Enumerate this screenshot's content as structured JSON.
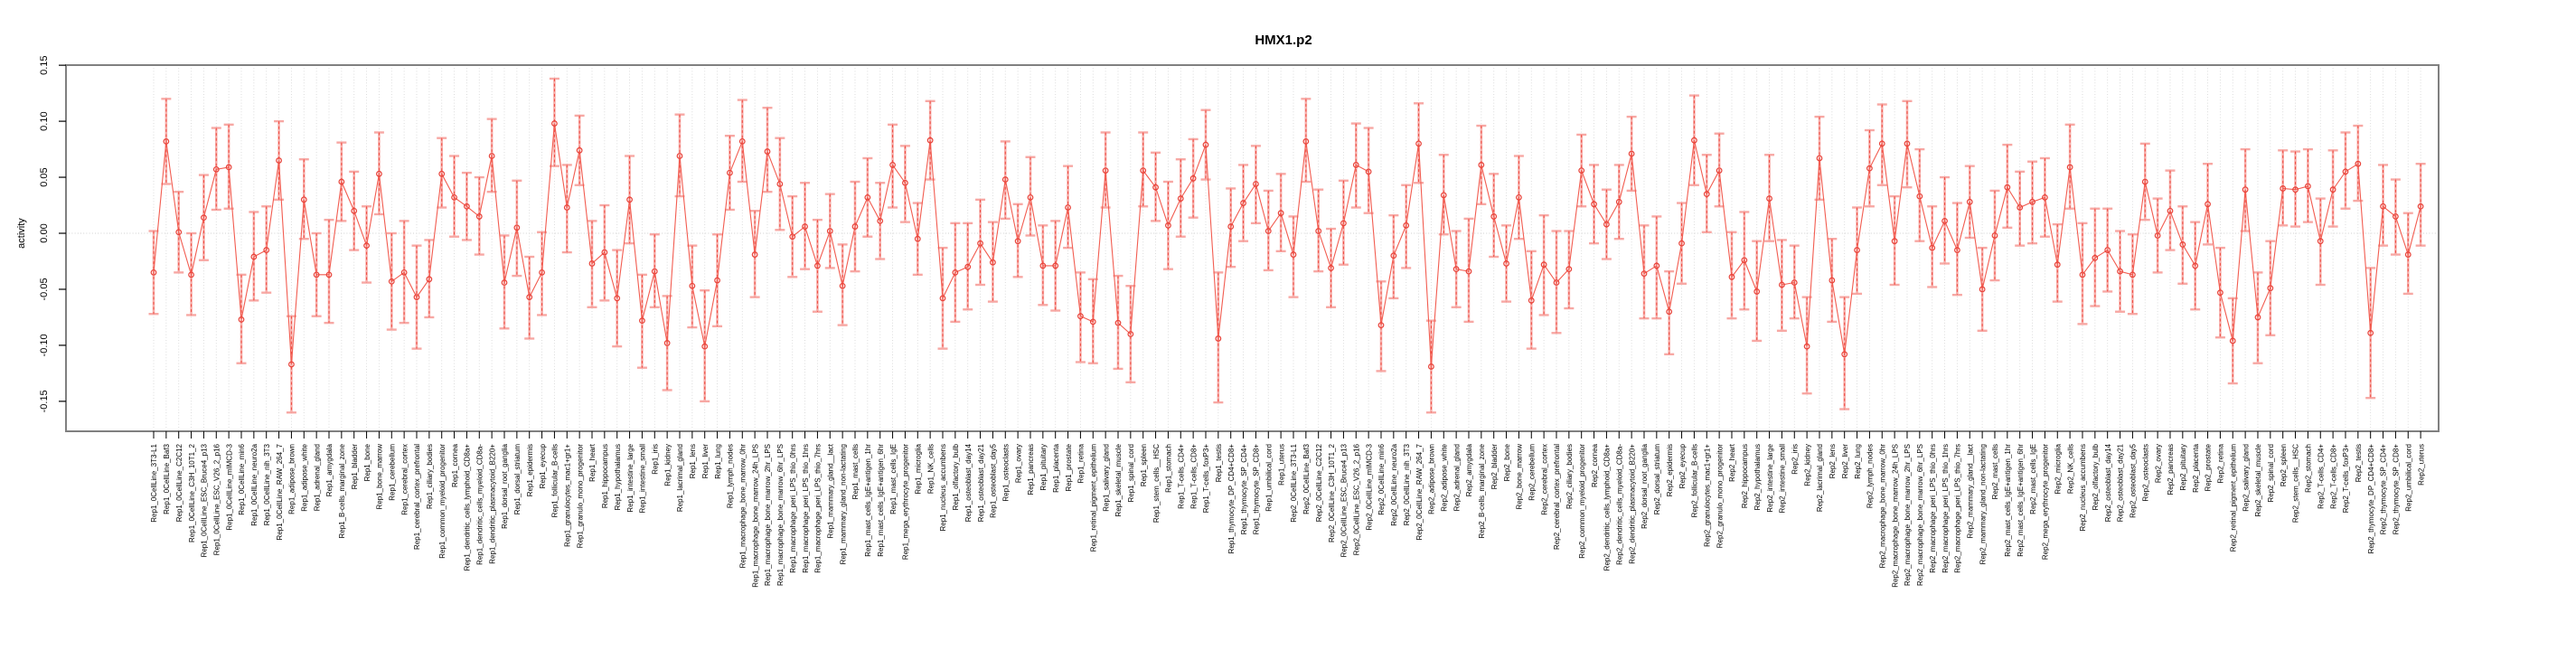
{
  "chart_data": {
    "type": "line",
    "title": "HMX1.p2",
    "ylabel": "activity",
    "xlabel": "",
    "ylim": [
      -0.177,
      0.153
    ],
    "yticks": [
      "0.15",
      "0.10",
      "0.05",
      "0.00",
      "-0.05",
      "-0.10",
      "-0.15"
    ],
    "ytick_values": [
      0.15,
      0.1,
      0.05,
      0.0,
      -0.05,
      -0.1,
      -0.15
    ],
    "grid": "light dotted vertical line at every category; dotted horizontal line at y=0",
    "legend": "none",
    "marker": "open-circle",
    "error_bars": "pink solid bar with caps plus dashed red shaft per point",
    "colors": {
      "point": "#e8433a",
      "line": "#f25c50",
      "errorbar": "#f7a8a4",
      "errorbar_dash": "#ef4b41",
      "grid": "#d8d8d8",
      "zero_line": "#d0d0d0",
      "box": "#808080",
      "tick": "#000000"
    },
    "categories": [
      "Rep1_0CellLine_3T3-L1",
      "Rep1_0CellLine_Baf3",
      "Rep1_0CellLine_C2C12",
      "Rep1_0CellLine_C3H_10T1_2",
      "Rep1_0CellLine_ESC_Bruce4_p13",
      "Rep1_0CellLine_ESC_V26_2_p16",
      "Rep1_0CellLine_mIMCD-3",
      "Rep1_0CellLine_min6",
      "Rep1_0CellLine_neuro2a",
      "Rep1_0CellLine_nih_3T3",
      "Rep1_0CellLine_RAW_264_7",
      "Rep1_adipose_brown",
      "Rep1_adipose_white",
      "Rep1_adrenal_gland",
      "Rep1_amygdala",
      "Rep1_B-cells_marginal_zone",
      "Rep1_bladder",
      "Rep1_bone",
      "Rep1_bone_marrow",
      "Rep1_cerebellum",
      "Rep1_cerebral_cortex",
      "Rep1_cerebral_cortex_prefrontal",
      "Rep1_ciliary_bodies",
      "Rep1_common_myeloid_progenitor",
      "Rep1_cornea",
      "Rep1_dendritic_cells_lymphoid_CD8a+",
      "Rep1_dendritic_cells_myeloid_CD8a-",
      "Rep1_dendritic_plasmacytoid_B220+",
      "Rep1_dorsal_root_ganglia",
      "Rep1_dorsal_striatum",
      "Rep1_epidermis",
      "Rep1_eyecup",
      "Rep1_follicular_B-cells",
      "Rep1_granulocytes_mac1+gr1+",
      "Rep1_granulo_mono_progenitor",
      "Rep1_heart",
      "Rep1_hippocampus",
      "Rep1_hypothalamus",
      "Rep1_intestine_large",
      "Rep1_intestine_small",
      "Rep1_iris",
      "Rep1_kidney",
      "Rep1_lacrimal_gland",
      "Rep1_lens",
      "Rep1_liver",
      "Rep1_lung",
      "Rep1_lymph_nodes",
      "Rep1_macrophage_bone_marrow_0hr",
      "Rep1_macrophage_bone_marrow_24h_LPS",
      "Rep1_macrophage_bone_marrow_2hr_LPS",
      "Rep1_macrophage_bone_marrow_6hr_LPS",
      "Rep1_macrophage_peri_LPS_thio_0hrs",
      "Rep1_macrophage_peri_LPS_thio_1hrs",
      "Rep1_macrophage_peri_LPS_thio_7hrs",
      "Rep1_mammary_gland__lact",
      "Rep1_mammary_gland_non-lactating",
      "Rep1_mast_cells",
      "Rep1_mast_cells_IgE+antigen_1hr",
      "Rep1_mast_cells_IgE+antigen_6hr",
      "Rep1_mast_cells_IgE",
      "Rep1_mega_erythrocyte_progenitor",
      "Rep1_microglia",
      "Rep1_NK_cells",
      "Rep1_nucleus_accumbens",
      "Rep1_olfactory_bulb",
      "Rep1_osteoblast_day14",
      "Rep1_osteoblast_day21",
      "Rep1_osteoblast_day5",
      "Rep1_osteoclasts",
      "Rep1_ovary",
      "Rep1_pancreas",
      "Rep1_pituitary",
      "Rep1_placenta",
      "Rep1_prostate",
      "Rep1_retina",
      "Rep1_retinal_pigment_epithelium",
      "Rep1_salivary_gland",
      "Rep1_skeletal_muscle",
      "Rep1_spinal_cord",
      "Rep1_spleen",
      "Rep1_stem_cells__HSC",
      "Rep1_stomach",
      "Rep1_T-cells_CD4+",
      "Rep1_T-cells_CD8+",
      "Rep1_T-cells_foxP3+",
      "Rep1_testis",
      "Rep1_thymocyte_DP_CD4+CD8+",
      "Rep1_thymocyte_SP_CD4+",
      "Rep1_thymocyte_SP_CD8+",
      "Rep1_umbilical_cord",
      "Rep1_uterus",
      "Rep2_0CellLine_3T3-L1",
      "Rep2_0CellLine_Baf3",
      "Rep2_0CellLine_C2C12",
      "Rep2_0CellLine_C3H_10T1_2",
      "Rep2_0CellLine_ESC_Bruce4_p13",
      "Rep2_0CellLine_ESC_V26_2_p16",
      "Rep2_0CellLine_mIMCD-3",
      "Rep2_0CellLine_min6",
      "Rep2_0CellLine_neuro2a",
      "Rep2_0CellLine_nih_3T3",
      "Rep2_0CellLine_RAW_264_7",
      "Rep2_adipose_brown",
      "Rep2_adipose_white",
      "Rep2_adrenal_gland",
      "Rep2_amygdala",
      "Rep2_B-cells_marginal_zone",
      "Rep2_bladder",
      "Rep2_bone",
      "Rep2_bone_marrow",
      "Rep2_cerebellum",
      "Rep2_cerebral_cortex",
      "Rep2_cerebral_cortex_prefrontal",
      "Rep2_ciliary_bodies",
      "Rep2_common_myeloid_progenitor",
      "Rep2_cornea",
      "Rep2_dendritic_cells_lymphoid_CD8a+",
      "Rep2_dendritic_cells_myeloid_CD8a-",
      "Rep2_dendritic_plasmacytoid_B220+",
      "Rep2_dorsal_root_ganglia",
      "Rep2_dorsal_striatum",
      "Rep2_epidermis",
      "Rep2_eyecup",
      "Rep2_follicular_B-cells",
      "Rep2_granulocytes_mac1+gr1+",
      "Rep2_granulo_mono_progenitor",
      "Rep2_heart",
      "Rep2_hippocampus",
      "Rep2_hypothalamus",
      "Rep2_intestine_large",
      "Rep2_intestine_small",
      "Rep2_iris",
      "Rep2_kidney",
      "Rep2_lacrimal_gland",
      "Rep2_lens",
      "Rep2_liver",
      "Rep2_lung",
      "Rep2_lymph_nodes",
      "Rep2_macrophage_bone_marrow_0hr",
      "Rep2_macrophage_bone_marrow_24h_LPS",
      "Rep2_macrophage_bone_marrow_2hr_LPS",
      "Rep2_macrophage_bone_marrow_6hr_LPS",
      "Rep2_macrophage_peri_LPS_thio_0hrs",
      "Rep2_macrophage_peri_LPS_thio_1hrs",
      "Rep2_macrophage_peri_LPS_thio_7hrs",
      "Rep2_mammary_gland__lact",
      "Rep2_mammary_gland_non-lactating",
      "Rep2_mast_cells",
      "Rep2_mast_cells_IgE+antigen_1hr",
      "Rep2_mast_cells_IgE+antigen_6hr",
      "Rep2_mast_cells_IgE",
      "Rep2_mega_erythrocyte_progenitor",
      "Rep2_microglia",
      "Rep2_NK_cells",
      "Rep2_nucleus_accumbens",
      "Rep2_olfactory_bulb",
      "Rep2_osteoblast_day14",
      "Rep2_osteoblast_day21",
      "Rep2_osteoblast_day5",
      "Rep2_osteoclasts",
      "Rep2_ovary",
      "Rep2_pancreas",
      "Rep2_pituitary",
      "Rep2_placenta",
      "Rep2_prostate",
      "Rep2_retina",
      "Rep2_retinal_pigment_epithelium",
      "Rep2_salivary_gland",
      "Rep2_skeletal_muscle",
      "Rep2_spinal_cord",
      "Rep2_spleen",
      "Rep2_stem_cells__HSC",
      "Rep2_stomach",
      "Rep2_T-cells_CD4+",
      "Rep2_T-cells_CD8+",
      "Rep2_T-cells_foxP3+",
      "Rep2_testis",
      "Rep2_thymocyte_DP_CD4+CD8+",
      "Rep2_thymocyte_SP_CD4+",
      "Rep2_thymocyte_SP_CD8+",
      "Rep2_umbilical_cord",
      "Rep2_uterus"
    ],
    "values": [
      -0.035,
      0.082,
      0.001,
      -0.037,
      0.014,
      0.057,
      0.059,
      -0.077,
      -0.021,
      -0.015,
      0.065,
      -0.117,
      0.03,
      -0.037,
      -0.037,
      0.046,
      0.02,
      -0.011,
      0.053,
      -0.043,
      -0.035,
      -0.057,
      -0.041,
      0.053,
      0.032,
      0.024,
      0.015,
      0.069,
      -0.044,
      0.005,
      -0.057,
      -0.035,
      0.098,
      0.023,
      0.074,
      -0.027,
      -0.017,
      -0.058,
      0.03,
      -0.078,
      -0.034,
      -0.098,
      0.069,
      -0.047,
      -0.101,
      -0.042,
      0.054,
      0.082,
      -0.019,
      0.073,
      0.044,
      -0.003,
      0.006,
      -0.029,
      0.002,
      -0.047,
      0.006,
      0.032,
      0.011,
      0.061,
      0.045,
      -0.005,
      0.083,
      -0.058,
      -0.035,
      -0.03,
      -0.009,
      -0.026,
      0.048,
      -0.007,
      0.032,
      -0.029,
      -0.029,
      0.023,
      -0.074,
      -0.079,
      0.056,
      -0.08,
      -0.09,
      0.056,
      0.041,
      0.007,
      0.031,
      0.049,
      0.079,
      -0.094,
      0.006,
      0.027,
      0.044,
      0.002,
      0.018,
      -0.019,
      0.082,
      0.002,
      -0.031,
      0.009,
      0.061,
      0.055,
      -0.082,
      -0.02,
      0.007,
      0.08,
      -0.119,
      0.034,
      -0.032,
      -0.034,
      0.061,
      0.015,
      -0.027,
      0.032,
      -0.06,
      -0.028,
      -0.044,
      -0.032,
      0.056,
      0.026,
      0.008,
      0.028,
      0.071,
      -0.036,
      -0.029,
      -0.07,
      -0.009,
      0.083,
      0.035,
      0.056,
      -0.039,
      -0.024,
      -0.052,
      0.031,
      -0.046,
      -0.044,
      -0.101,
      0.067,
      -0.042,
      -0.108,
      -0.015,
      0.058,
      0.08,
      -0.007,
      0.08,
      0.033,
      -0.013,
      0.011,
      -0.015,
      0.028,
      -0.05,
      -0.002,
      0.041,
      0.023,
      0.028,
      0.032,
      -0.028,
      0.059,
      -0.037,
      -0.022,
      -0.015,
      -0.034,
      -0.037,
      0.046,
      -0.002,
      0.02,
      -0.01,
      -0.029,
      0.026,
      -0.053,
      -0.096,
      0.039,
      -0.075,
      -0.049,
      0.04,
      0.039,
      0.042,
      -0.007,
      0.039,
      0.055,
      0.062,
      -0.089,
      0.024,
      0.015,
      -0.019,
      0.024
    ],
    "err_lo": [
      -0.072,
      0.044,
      -0.035,
      -0.073,
      -0.024,
      0.021,
      0.022,
      -0.116,
      -0.06,
      -0.053,
      0.03,
      -0.16,
      -0.005,
      -0.074,
      -0.08,
      0.011,
      -0.015,
      -0.044,
      0.017,
      -0.086,
      -0.08,
      -0.103,
      -0.075,
      0.023,
      -0.003,
      -0.006,
      -0.019,
      0.037,
      -0.085,
      -0.038,
      -0.094,
      -0.073,
      0.06,
      -0.017,
      0.043,
      -0.066,
      -0.06,
      -0.101,
      -0.009,
      -0.12,
      -0.066,
      -0.14,
      0.033,
      -0.084,
      -0.15,
      -0.083,
      0.021,
      0.046,
      -0.057,
      0.037,
      0.003,
      -0.039,
      -0.032,
      -0.07,
      -0.031,
      -0.082,
      -0.034,
      -0.003,
      -0.023,
      0.023,
      0.01,
      -0.037,
      0.048,
      -0.103,
      -0.079,
      -0.068,
      -0.046,
      -0.061,
      0.013,
      -0.039,
      -0.002,
      -0.064,
      -0.069,
      -0.013,
      -0.115,
      -0.116,
      0.023,
      -0.121,
      -0.133,
      0.024,
      0.011,
      -0.032,
      -0.003,
      0.014,
      0.048,
      -0.151,
      -0.03,
      -0.007,
      0.009,
      -0.033,
      -0.016,
      -0.057,
      0.046,
      -0.034,
      -0.066,
      -0.028,
      0.023,
      0.018,
      -0.123,
      -0.058,
      -0.031,
      0.045,
      -0.16,
      -0.001,
      -0.066,
      -0.079,
      0.026,
      -0.021,
      -0.061,
      -0.005,
      -0.103,
      -0.073,
      -0.089,
      -0.067,
      0.024,
      -0.009,
      -0.023,
      -0.005,
      0.038,
      -0.076,
      -0.076,
      -0.108,
      -0.045,
      0.043,
      0.001,
      0.024,
      -0.076,
      -0.068,
      -0.096,
      -0.007,
      -0.087,
      -0.076,
      -0.143,
      0.03,
      -0.079,
      -0.157,
      -0.054,
      0.024,
      0.043,
      -0.046,
      0.041,
      -0.007,
      -0.048,
      -0.027,
      -0.055,
      -0.004,
      -0.087,
      -0.042,
      0.005,
      -0.011,
      -0.009,
      -0.003,
      -0.061,
      0.022,
      -0.081,
      -0.065,
      -0.052,
      -0.07,
      -0.072,
      0.012,
      -0.035,
      -0.015,
      -0.045,
      -0.068,
      -0.01,
      -0.093,
      -0.134,
      0.002,
      -0.116,
      -0.091,
      0.007,
      0.006,
      0.01,
      -0.046,
      0.006,
      0.022,
      0.029,
      -0.147,
      -0.011,
      -0.019,
      -0.054,
      -0.011
    ],
    "err_hi": [
      0.002,
      0.12,
      0.037,
      0.0,
      0.052,
      0.094,
      0.097,
      -0.037,
      0.019,
      0.024,
      0.1,
      -0.074,
      0.066,
      0.0,
      0.012,
      0.081,
      0.055,
      0.024,
      0.09,
      0.0,
      0.011,
      -0.011,
      -0.006,
      0.085,
      0.069,
      0.054,
      0.05,
      0.102,
      -0.002,
      0.047,
      -0.021,
      0.001,
      0.138,
      0.061,
      0.105,
      0.011,
      0.025,
      -0.015,
      0.069,
      -0.037,
      -0.001,
      -0.056,
      0.106,
      -0.011,
      -0.051,
      -0.001,
      0.087,
      0.119,
      0.02,
      0.112,
      0.085,
      0.033,
      0.045,
      0.012,
      0.035,
      -0.01,
      0.046,
      0.067,
      0.045,
      0.097,
      0.078,
      0.027,
      0.118,
      -0.013,
      0.009,
      0.009,
      0.03,
      0.01,
      0.082,
      0.026,
      0.068,
      0.007,
      0.011,
      0.06,
      -0.035,
      -0.041,
      0.09,
      -0.038,
      -0.047,
      0.09,
      0.072,
      0.046,
      0.066,
      0.084,
      0.11,
      -0.035,
      0.04,
      0.061,
      0.078,
      0.038,
      0.053,
      0.015,
      0.12,
      0.039,
      0.004,
      0.047,
      0.098,
      0.094,
      -0.043,
      0.016,
      0.043,
      0.116,
      -0.078,
      0.07,
      0.002,
      0.013,
      0.096,
      0.053,
      0.007,
      0.069,
      -0.016,
      0.016,
      0.002,
      0.002,
      0.088,
      0.061,
      0.039,
      0.061,
      0.104,
      0.007,
      0.015,
      -0.034,
      0.027,
      0.123,
      0.07,
      0.089,
      0.001,
      0.019,
      -0.007,
      0.07,
      -0.006,
      -0.011,
      -0.057,
      0.104,
      -0.005,
      -0.057,
      0.023,
      0.092,
      0.115,
      0.033,
      0.118,
      0.075,
      0.024,
      0.05,
      0.027,
      0.06,
      -0.013,
      0.038,
      0.079,
      0.055,
      0.064,
      0.067,
      0.008,
      0.097,
      0.009,
      0.022,
      0.022,
      0.002,
      -0.001,
      0.08,
      0.031,
      0.056,
      0.024,
      0.01,
      0.062,
      -0.013,
      -0.058,
      0.075,
      -0.035,
      -0.007,
      0.074,
      0.073,
      0.075,
      0.031,
      0.074,
      0.09,
      0.096,
      -0.031,
      0.061,
      0.048,
      0.018,
      0.062
    ]
  }
}
